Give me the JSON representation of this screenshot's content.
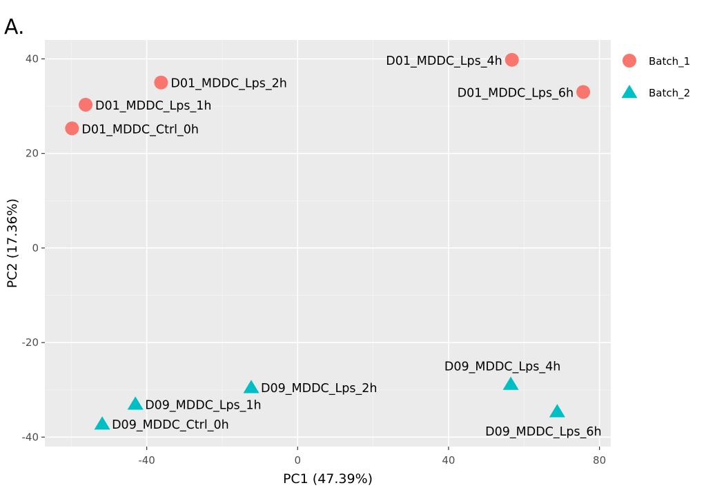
{
  "panel_label": "A.",
  "chart_data": {
    "type": "scatter",
    "xlabel": "PC1 (47.39%)",
    "ylabel": "PC2 (17.36%)",
    "xlim": [
      -67,
      83
    ],
    "ylim": [
      -42,
      44
    ],
    "x_ticks": [
      -40,
      0,
      40,
      80
    ],
    "y_ticks": [
      40,
      20,
      0,
      -20,
      -40
    ],
    "x_tick_labels": [
      "-40",
      "0",
      "40",
      "80"
    ],
    "y_tick_labels": [
      "40",
      "20",
      "0",
      "-20",
      "-40"
    ],
    "grid": true,
    "legend_position": "right",
    "series": [
      {
        "name": "Batch_1",
        "color": "#F8766D",
        "marker": "circle",
        "points": [
          {
            "x": -59.8,
            "y": 25.3,
            "label": "D01_MDDC_Ctrl_0h",
            "label_side": "right"
          },
          {
            "x": -56.2,
            "y": 30.3,
            "label": "D01_MDDC_Lps_1h",
            "label_side": "right"
          },
          {
            "x": -36.2,
            "y": 35.0,
            "label": "D01_MDDC_Lps_2h",
            "label_side": "right"
          },
          {
            "x": 56.8,
            "y": 39.8,
            "label": "D01_MDDC_Lps_4h",
            "label_side": "left"
          },
          {
            "x": 75.7,
            "y": 33.0,
            "label": "D01_MDDC_Lps_6h",
            "label_side": "left"
          }
        ]
      },
      {
        "name": "Batch_2",
        "color": "#00BFC4",
        "marker": "triangle",
        "points": [
          {
            "x": -51.8,
            "y": -37.2,
            "label": "D09_MDDC_Ctrl_0h",
            "label_side": "right"
          },
          {
            "x": -43.0,
            "y": -33.0,
            "label": "D09_MDDC_Lps_1h",
            "label_side": "right"
          },
          {
            "x": -12.3,
            "y": -29.5,
            "label": "D09_MDDC_Lps_2h",
            "label_side": "right"
          },
          {
            "x": 56.5,
            "y": -28.8,
            "label": "D09_MDDC_Lps_4h",
            "label_side": "above"
          },
          {
            "x": 68.8,
            "y": -34.6,
            "label": "D09_MDDC_Lps_6h",
            "label_side": "below"
          }
        ]
      }
    ]
  }
}
